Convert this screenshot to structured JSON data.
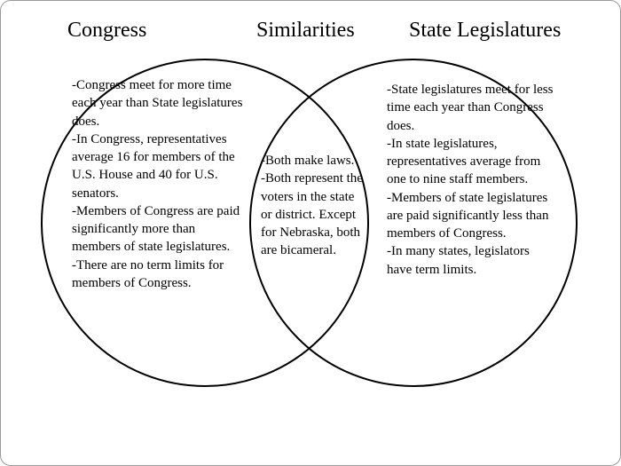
{
  "type": "venn-diagram",
  "background_color": "#ffffff",
  "border_color": "#999999",
  "circle_stroke_color": "#000000",
  "circle_stroke_width": 2.5,
  "text_color": "#000000",
  "title_fontsize": 24,
  "item_fontsize": 15,
  "titles": {
    "left": "Congress",
    "center": "Similarities",
    "right": "State Legislatures"
  },
  "left_items": [
    "-Congress meet for more time each year than State legislatures does.",
    "-In Congress, representatives average 16 for members of the U.S. House and 40 for U.S. senators.",
    "-Members of Congress are paid significantly more than members of state legislatures.",
    "-There are no term limits for members of Congress."
  ],
  "center_items": [
    "-Both make laws.",
    "-Both represent the voters in the state or district. Except for Nebraska, both are bicameral."
  ],
  "right_items": [
    "-State legislatures meet for less time each year than Congress does.",
    "-In state legislatures, representatives average from one to nine staff members.",
    "-Members of state legislatures are paid significantly less than members of Congress.",
    "-In many states, legislators have term limits."
  ]
}
